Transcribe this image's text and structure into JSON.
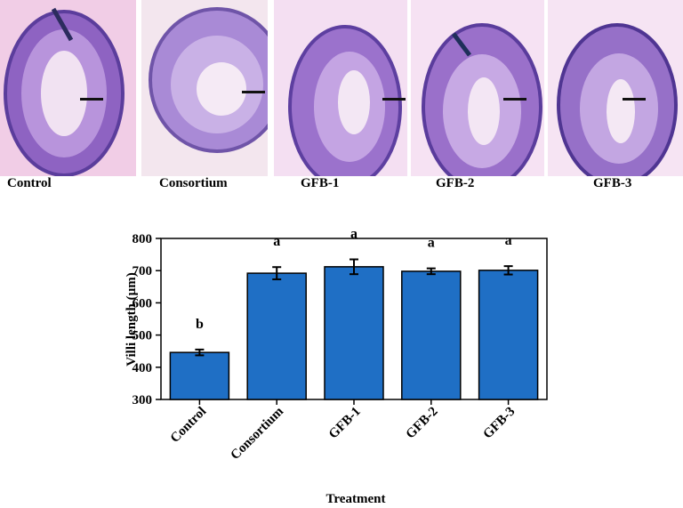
{
  "panels": [
    {
      "label": "Control"
    },
    {
      "label": "Consortium"
    },
    {
      "label": "GFB-1"
    },
    {
      "label": "GFB-2"
    },
    {
      "label": "GFB-3"
    }
  ],
  "colors": {
    "bar": "#1f6fc5",
    "tissue_bg": "#f1cde6",
    "tissue": "#9a6fc9",
    "tissue_dark": "#5b3d9c"
  },
  "chart_data": {
    "type": "bar",
    "categories": [
      "Control",
      "Consortium",
      "GFB-1",
      "GFB-2",
      "GFB-3"
    ],
    "values": [
      446,
      692,
      712,
      698,
      701
    ],
    "errors": [
      9,
      19,
      23,
      9,
      13
    ],
    "significance": [
      "b",
      "a",
      "a",
      "a",
      "a"
    ],
    "xlabel": "Treatment",
    "ylabel": "Villi length (µm)",
    "ylim": [
      300,
      800
    ],
    "yticks": [
      300,
      400,
      500,
      600,
      700,
      800
    ],
    "grid": false,
    "legend": "none"
  }
}
